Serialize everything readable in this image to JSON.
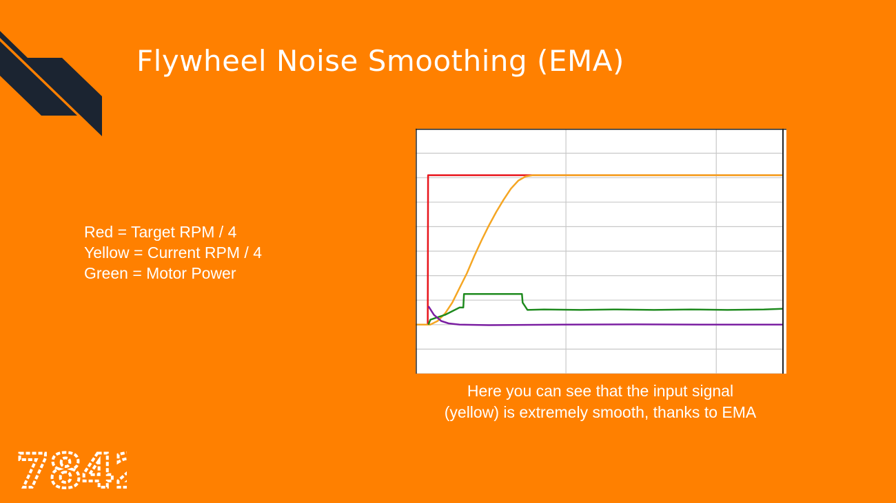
{
  "slide": {
    "title": "Flywheel Noise Smoothing (EMA)",
    "legend_lines": [
      "Red = Target RPM / 4",
      "Yellow = Current RPM / 4",
      "Green = Motor Power"
    ],
    "caption_lines": [
      "Here you can see that the input signal",
      "(yellow) is extremely smooth, thanks to EMA"
    ],
    "logo_text": "7842"
  },
  "colors": {
    "background": "#ff8000",
    "decor": "#1b2431",
    "text": "#ffffff",
    "plot_background": "#ffffff",
    "gridline": "#c8c8c8"
  },
  "chart_data": {
    "type": "line",
    "title": "",
    "xlabel": "",
    "ylabel": "",
    "xlim": [
      0,
      100
    ],
    "ylim": [
      -2,
      8
    ],
    "grid": true,
    "y_gridlines": [
      -2,
      -1,
      0,
      1,
      2,
      3,
      4,
      5,
      6,
      7,
      8
    ],
    "x_gridlines": [
      41,
      82
    ],
    "tick_labels_visible": false,
    "series": [
      {
        "color": "#e8141b",
        "points": [
          [
            0,
            0
          ],
          [
            3.3,
            0
          ],
          [
            3.4,
            6.1
          ],
          [
            100,
            6.1
          ]
        ]
      },
      {
        "color": "#f5a623",
        "points": [
          [
            0,
            0
          ],
          [
            4,
            0
          ],
          [
            6,
            0.15
          ],
          [
            8,
            0.45
          ],
          [
            10,
            0.9
          ],
          [
            12,
            1.5
          ],
          [
            14,
            2.1
          ],
          [
            16,
            2.8
          ],
          [
            18,
            3.45
          ],
          [
            20,
            4.05
          ],
          [
            22,
            4.6
          ],
          [
            24,
            5.1
          ],
          [
            26,
            5.55
          ],
          [
            28,
            5.88
          ],
          [
            30,
            6.05
          ],
          [
            32,
            6.1
          ],
          [
            100,
            6.1
          ]
        ]
      },
      {
        "color": "#1e8a1e",
        "points": [
          [
            3.5,
            0
          ],
          [
            4,
            0.2
          ],
          [
            6,
            0.3
          ],
          [
            8,
            0.4
          ],
          [
            10,
            0.55
          ],
          [
            12,
            0.7
          ],
          [
            13,
            0.7
          ],
          [
            13.2,
            1.25
          ],
          [
            29,
            1.25
          ],
          [
            29.2,
            0.9
          ],
          [
            30.5,
            0.6
          ],
          [
            35,
            0.62
          ],
          [
            45,
            0.6
          ],
          [
            55,
            0.62
          ],
          [
            65,
            0.6
          ],
          [
            75,
            0.62
          ],
          [
            85,
            0.6
          ],
          [
            95,
            0.62
          ],
          [
            100,
            0.65
          ]
        ]
      },
      {
        "color": "#7b1fa2",
        "points": [
          [
            3.5,
            0.75
          ],
          [
            5,
            0.4
          ],
          [
            7,
            0.15
          ],
          [
            9,
            0.05
          ],
          [
            12,
            0
          ],
          [
            20,
            -0.02
          ],
          [
            40,
            0
          ],
          [
            60,
            0.01
          ],
          [
            80,
            0
          ],
          [
            100,
            0
          ]
        ]
      }
    ]
  }
}
